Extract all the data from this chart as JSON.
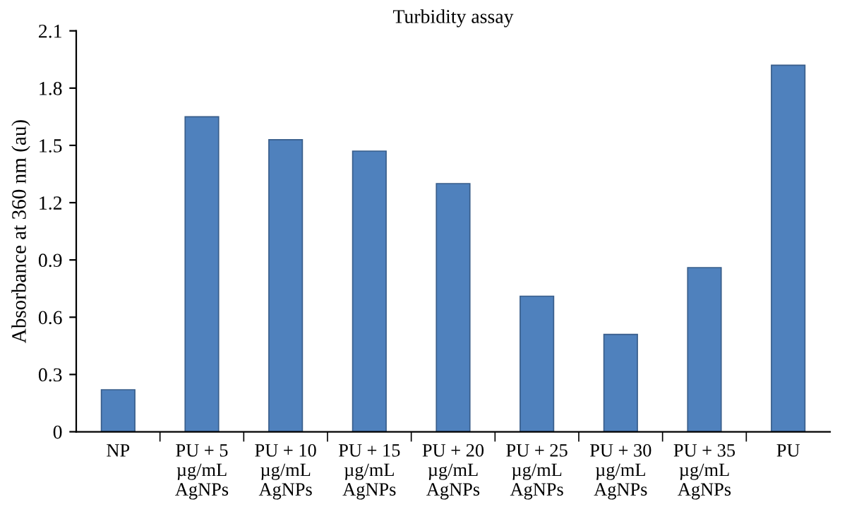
{
  "chart_data": {
    "type": "bar",
    "title": "Turbidity assay",
    "ylabel": "Absorbance at 360 nm (au)",
    "categories": [
      "NP",
      "PU + 5\nµg/mL\nAgNPs",
      "PU + 10\nµg/mL\nAgNPs",
      "PU + 15\nµg/mL\nAgNPs",
      "PU + 20\nµg/mL\nAgNPs",
      "PU + 25\nµg/mL\nAgNPs",
      "PU + 30\nµg/mL\nAgNPs",
      "PU + 35\nµg/mL\nAgNPs",
      "PU"
    ],
    "values": [
      0.22,
      1.65,
      1.53,
      1.47,
      1.3,
      0.71,
      0.51,
      0.86,
      1.92
    ],
    "color": "#4f81bd",
    "ylim": [
      0,
      2.1
    ],
    "yticks": [
      0,
      0.3,
      0.6,
      0.9,
      1.2,
      1.5,
      1.8,
      2.1
    ],
    "grid": false,
    "legend": false
  }
}
